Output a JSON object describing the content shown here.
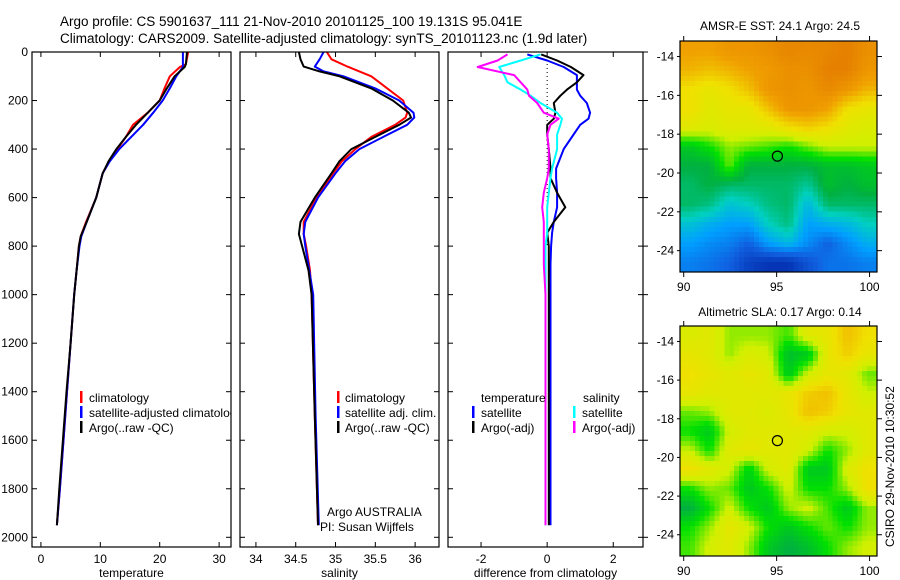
{
  "title": {
    "line1": "Argo profile: CS 5901637_111 21-Nov-2010 20101125_100 19.131S 95.041E",
    "line2": "Climatology: CARS2009. Satellite-adjusted climatology: synTS_20101123.nc (1.9d later)"
  },
  "side_stamp": "CSIRO 29-Nov-2010 10:30:52",
  "colors": {
    "climatology": "#ff0000",
    "satellite": "#0000ff",
    "argo": "#000000",
    "sal_satellite": "#00ffff",
    "sal_argo": "#ff00ff"
  },
  "chart_data": [
    {
      "type": "line",
      "xlabel": "temperature",
      "ylabel": "",
      "xlim": [
        -1.5,
        32
      ],
      "ylim": [
        2040,
        0
      ],
      "xticks": [
        "0",
        "10",
        "20",
        "30"
      ],
      "yticks": [
        "0",
        "200",
        "400",
        "600",
        "800",
        "1000",
        "1200",
        "1400",
        "1600",
        "1800",
        "2000"
      ],
      "legend": {
        "placement": "lower-center",
        "entries": [
          "climatology",
          "satellite-adjusted climatology",
          "Argo(..raw -QC)"
        ]
      },
      "depth": [
        0,
        50,
        62,
        100,
        150,
        200,
        250,
        300,
        350,
        400,
        450,
        500,
        600,
        700,
        760,
        800,
        900,
        1000,
        1200,
        1400,
        1600,
        1800,
        1950
      ],
      "series": [
        {
          "name": "climatology",
          "color_key": "climatology",
          "values": [
            24.8,
            24.4,
            23.4,
            21.7,
            20.8,
            20,
            18,
            15.5,
            14.3,
            12.9,
            11.5,
            10.4,
            9.3,
            7.6,
            6.7,
            6.4,
            6,
            5.6,
            5,
            4.4,
            3.8,
            3.2,
            2.7
          ]
        },
        {
          "name": "satellite-adjusted climatology",
          "color_key": "satellite",
          "values": [
            23.9,
            23.9,
            23.9,
            22.8,
            21.7,
            20.5,
            18.9,
            17.2,
            15.2,
            13.2,
            11.6,
            10.4,
            9.3,
            7.7,
            6.8,
            6.5,
            6,
            5.6,
            5,
            4.4,
            3.8,
            3.2,
            2.7
          ]
        },
        {
          "name": "Argo(..raw -QC)",
          "color_key": "argo",
          "values": [
            24.6,
            24.4,
            24.2,
            22.5,
            21.2,
            20,
            18,
            16,
            14.3,
            12.7,
            11.4,
            10.4,
            9.3,
            7.7,
            6.7,
            6.4,
            6,
            5.6,
            5,
            4.3,
            3.7,
            3.1,
            2.7
          ]
        }
      ]
    },
    {
      "type": "line",
      "xlabel": "salinity",
      "xlim": [
        33.8,
        36.3
      ],
      "ylim": [
        2040,
        0
      ],
      "xticks": [
        "34",
        "34.5",
        "35",
        "35.5",
        "36"
      ],
      "legend": {
        "placement": "lower-center",
        "entries": [
          "climatology",
          "satellite adj. clim.",
          "Argo(..raw -QC)"
        ]
      },
      "annotations": [
        "Argo AUSTRALIA",
        "PI: Susan Wijffels"
      ],
      "depth": [
        0,
        30,
        60,
        80,
        100,
        150,
        200,
        250,
        270,
        300,
        350,
        400,
        450,
        500,
        600,
        700,
        750,
        800,
        900,
        1000,
        1500,
        1950
      ],
      "series": [
        {
          "name": "climatology",
          "color_key": "climatology",
          "values": [
            34.89,
            34.95,
            35.15,
            35.3,
            35.45,
            35.65,
            35.85,
            35.9,
            35.88,
            35.75,
            35.45,
            35.25,
            35.08,
            34.97,
            34.76,
            34.6,
            34.6,
            34.63,
            34.68,
            34.7,
            34.74,
            34.78
          ]
        },
        {
          "name": "satellite adj. clim.",
          "color_key": "satellite",
          "values": [
            34.85,
            34.8,
            34.74,
            34.85,
            35.1,
            35.5,
            35.8,
            35.98,
            35.99,
            35.9,
            35.6,
            35.3,
            35.12,
            35.0,
            34.78,
            34.62,
            34.6,
            34.62,
            34.67,
            34.72,
            34.75,
            34.79
          ]
        },
        {
          "name": "Argo(..raw -QC)",
          "color_key": "argo",
          "values": [
            34.54,
            34.56,
            34.6,
            34.8,
            35.05,
            35.45,
            35.72,
            35.92,
            35.95,
            35.8,
            35.5,
            35.2,
            35.05,
            34.95,
            34.74,
            34.56,
            34.54,
            34.58,
            34.66,
            34.7,
            34.74,
            34.78
          ]
        }
      ]
    },
    {
      "type": "line",
      "xlabel": "difference from climatology",
      "xlim": [
        -3,
        2.9
      ],
      "ylim": [
        2040,
        0
      ],
      "xticks": [
        "-2",
        "0",
        "2"
      ],
      "legend": {
        "placement": "lower-center",
        "temperature_title": "temperature",
        "salinity_title": "salinity",
        "entries": [
          "satellite",
          "Argo(-adj)",
          "satellite",
          "Argo(-adj)"
        ]
      },
      "depth": [
        10,
        35,
        62,
        95,
        125,
        155,
        180,
        210,
        250,
        275,
        300,
        340,
        400,
        480,
        520,
        580,
        640,
        700,
        745,
        800,
        875,
        1000,
        1400,
        1950
      ],
      "series": [
        {
          "name": "temperature satellite",
          "color_key": "satellite",
          "values": [
            -0.6,
            0,
            0.5,
            0.9,
            0.9,
            0.9,
            1.0,
            1.2,
            1.3,
            1.25,
            1.0,
            0.8,
            0.5,
            0.27,
            0.27,
            0.3,
            0.3,
            0.2,
            0.15,
            0.12,
            0.1,
            0.1,
            0.1,
            0.1
          ]
        },
        {
          "name": "temperature Argo(-adj)",
          "color_key": "argo",
          "values": [
            -0.18,
            0.3,
            0.72,
            1.1,
            0.9,
            0.6,
            0.4,
            0.2,
            0.25,
            0.2,
            0.0,
            0.0,
            0.05,
            0.1,
            0.1,
            0.3,
            0.55,
            0.2,
            0.0,
            0.05,
            0.05,
            0.05,
            0.05,
            0.05
          ]
        },
        {
          "name": "salinity satellite",
          "color_key": "sal_satellite",
          "values": [
            -0.2,
            -0.8,
            -1.45,
            -1.3,
            -1.2,
            -0.8,
            -0.5,
            -0.2,
            0.3,
            0.45,
            0.4,
            0.3,
            0.3,
            0.15,
            0.1,
            0.05,
            0.0,
            0.0,
            0.0,
            -0.05,
            -0.05,
            -0.05,
            -0.05,
            -0.05
          ]
        },
        {
          "name": "salinity Argo(-adj)",
          "color_key": "sal_argo",
          "values": [
            -1.2,
            -1.5,
            -2.1,
            -1.0,
            -0.8,
            -0.6,
            -0.55,
            -0.3,
            -0.1,
            0.35,
            0.1,
            0.0,
            0.05,
            0.05,
            0.0,
            -0.1,
            -0.15,
            -0.1,
            -0.1,
            -0.1,
            -0.1,
            -0.05,
            -0.05,
            -0.05
          ]
        }
      ]
    },
    {
      "type": "heatmap",
      "title": "AMSR-E SST: 24.1 Argo: 24.5",
      "xlim": [
        89.8,
        100.4
      ],
      "ylim": [
        -25.1,
        -13.2
      ],
      "xticks": [
        "90",
        "95",
        "100"
      ],
      "yticks": [
        "-14",
        "-16",
        "-18",
        "-20",
        "-22",
        "-24"
      ],
      "marker": {
        "lon": 95.041,
        "lat": -19.131
      },
      "value_scale": "normalized colour index 0 (blue) to 1 (orange)",
      "grid": [
        [
          0.85,
          0.85,
          0.88,
          0.88,
          0.9,
          0.93,
          0.92,
          0.93,
          0.95,
          0.9
        ],
        [
          0.82,
          0.8,
          0.82,
          0.85,
          0.87,
          0.9,
          0.9,
          0.95,
          0.95,
          0.88
        ],
        [
          0.75,
          0.72,
          0.75,
          0.8,
          0.88,
          0.9,
          0.88,
          0.92,
          0.88,
          0.82
        ],
        [
          0.75,
          0.7,
          0.72,
          0.72,
          0.8,
          0.88,
          0.88,
          0.85,
          0.75,
          0.72
        ],
        [
          0.7,
          0.68,
          0.7,
          0.7,
          0.7,
          0.75,
          0.78,
          0.75,
          0.7,
          0.68
        ],
        [
          0.5,
          0.55,
          0.62,
          0.6,
          0.58,
          0.55,
          0.6,
          0.65,
          0.65,
          0.65
        ],
        [
          0.45,
          0.45,
          0.6,
          0.45,
          0.45,
          0.45,
          0.45,
          0.48,
          0.48,
          0.5
        ],
        [
          0.42,
          0.45,
          0.42,
          0.42,
          0.42,
          0.42,
          0.38,
          0.48,
          0.45,
          0.48
        ],
        [
          0.42,
          0.4,
          0.32,
          0.35,
          0.4,
          0.42,
          0.3,
          0.42,
          0.42,
          0.42
        ],
        [
          0.32,
          0.28,
          0.25,
          0.25,
          0.35,
          0.4,
          0.25,
          0.28,
          0.3,
          0.35
        ],
        [
          0.25,
          0.22,
          0.2,
          0.15,
          0.25,
          0.3,
          0.22,
          0.15,
          0.22,
          0.28
        ],
        [
          0.2,
          0.18,
          0.15,
          0.08,
          0.05,
          0.05,
          0.12,
          0.18,
          0.18,
          0.2
        ]
      ]
    },
    {
      "type": "heatmap",
      "title": "Altimetric SLA: 0.17 Argo: 0.14",
      "xlim": [
        89.8,
        100.4
      ],
      "ylim": [
        -25.1,
        -13.2
      ],
      "xticks": [
        "90",
        "95",
        "100"
      ],
      "yticks": [
        "-14",
        "-16",
        "-18",
        "-20",
        "-22",
        "-24"
      ],
      "marker": {
        "lon": 95.041,
        "lat": -19.131
      },
      "value_scale": "normalized colour index 0 (blue) to 1 (orange)",
      "grid": [
        [
          0.68,
          0.7,
          0.62,
          0.62,
          0.62,
          0.58,
          0.7,
          0.72,
          0.8,
          0.75
        ],
        [
          0.72,
          0.7,
          0.62,
          0.68,
          0.66,
          0.48,
          0.5,
          0.72,
          0.78,
          0.72
        ],
        [
          0.75,
          0.72,
          0.7,
          0.72,
          0.7,
          0.5,
          0.66,
          0.72,
          0.7,
          0.6
        ],
        [
          0.72,
          0.7,
          0.7,
          0.7,
          0.7,
          0.72,
          0.78,
          0.8,
          0.72,
          0.65
        ],
        [
          0.6,
          0.62,
          0.7,
          0.7,
          0.68,
          0.72,
          0.8,
          0.78,
          0.72,
          0.7
        ],
        [
          0.55,
          0.5,
          0.66,
          0.7,
          0.7,
          0.7,
          0.7,
          0.66,
          0.66,
          0.7
        ],
        [
          0.65,
          0.55,
          0.7,
          0.72,
          0.7,
          0.7,
          0.66,
          0.55,
          0.62,
          0.7
        ],
        [
          0.75,
          0.7,
          0.66,
          0.52,
          0.66,
          0.7,
          0.5,
          0.5,
          0.68,
          0.75
        ],
        [
          0.55,
          0.62,
          0.6,
          0.5,
          0.55,
          0.66,
          0.55,
          0.55,
          0.62,
          0.75
        ],
        [
          0.45,
          0.55,
          0.66,
          0.55,
          0.5,
          0.62,
          0.66,
          0.58,
          0.5,
          0.62
        ],
        [
          0.55,
          0.62,
          0.72,
          0.66,
          0.55,
          0.5,
          0.55,
          0.6,
          0.55,
          0.62
        ],
        [
          0.58,
          0.66,
          0.7,
          0.62,
          0.5,
          0.45,
          0.48,
          0.55,
          0.62,
          0.66
        ]
      ]
    }
  ]
}
